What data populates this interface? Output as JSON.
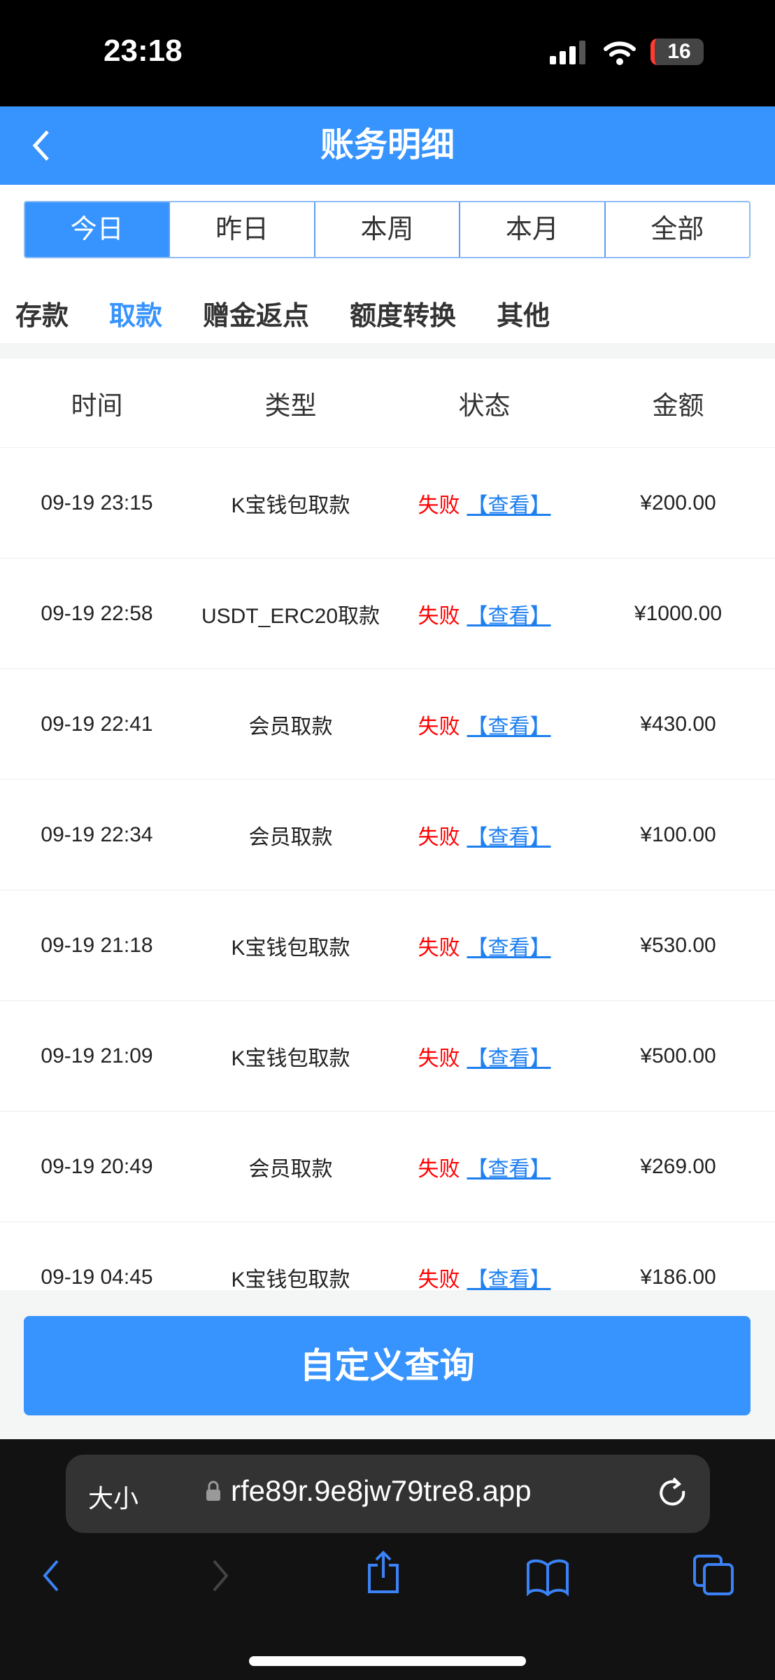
{
  "status_bar": {
    "time": "23:18",
    "battery": "16"
  },
  "header": {
    "title": "账务明细"
  },
  "period_tabs": [
    {
      "label": "今日",
      "active": true
    },
    {
      "label": "昨日"
    },
    {
      "label": "本周"
    },
    {
      "label": "本月"
    },
    {
      "label": "全部"
    }
  ],
  "category_tabs": [
    {
      "label": "存款"
    },
    {
      "label": "取款",
      "active": true
    },
    {
      "label": "赠金返点"
    },
    {
      "label": "额度转换"
    },
    {
      "label": "其他"
    }
  ],
  "table": {
    "columns": [
      "时间",
      "类型",
      "状态",
      "金额"
    ],
    "rows": [
      {
        "time": "09-19 23:15",
        "type": "K宝钱包取款",
        "status": "失败",
        "action": "【查看】",
        "amount": "¥200.00"
      },
      {
        "time": "09-19 22:58",
        "type": "USDT_ERC20取款",
        "status": "失败",
        "action": "【查看】",
        "amount": "¥1000.00"
      },
      {
        "time": "09-19 22:41",
        "type": "会员取款",
        "status": "失败",
        "action": "【查看】",
        "amount": "¥430.00"
      },
      {
        "time": "09-19 22:34",
        "type": "会员取款",
        "status": "失败",
        "action": "【查看】",
        "amount": "¥100.00"
      },
      {
        "time": "09-19 21:18",
        "type": "K宝钱包取款",
        "status": "失败",
        "action": "【查看】",
        "amount": "¥530.00"
      },
      {
        "time": "09-19 21:09",
        "type": "K宝钱包取款",
        "status": "失败",
        "action": "【查看】",
        "amount": "¥500.00"
      },
      {
        "time": "09-19 20:49",
        "type": "会员取款",
        "status": "失败",
        "action": "【查看】",
        "amount": "¥269.00"
      },
      {
        "time": "09-19 04:45",
        "type": "K宝钱包取款",
        "status": "失败",
        "action": "【查看】",
        "amount": "¥186.00"
      }
    ]
  },
  "custom_query_label": "自定义查询",
  "browser": {
    "text_size": "大小",
    "url": "rfe89r.9e8jw79tre8.app"
  },
  "colors": {
    "accent": "#3793fd",
    "fail": "#ff0000",
    "link": "#1e7ff0"
  }
}
